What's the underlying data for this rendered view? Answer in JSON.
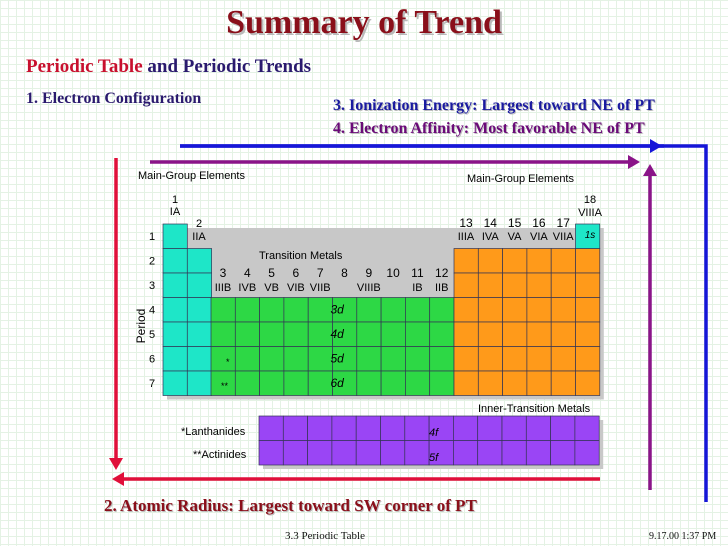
{
  "slide": {
    "title": "Summary of Trend",
    "subtitle_part1": "Periodic Table",
    "subtitle_part2": "and Periodic Trends",
    "item1": "1.  Electron Configuration",
    "item3": "3. Ionization Energy: Largest toward NE of PT",
    "item4": "4. Electron Affinity:   Most favorable NE of PT",
    "item2": "2.  Atomic Radius:  Largest toward SW corner of PT",
    "footer": "3.3  Periodic Table",
    "date": "9.17.00 1:37 PM"
  },
  "table": {
    "main_group_left": "Main-Group Elements",
    "main_group_right": "Main-Group Elements",
    "transition_metals": "Transition Metals",
    "inner_transition": "Inner-Transition Metals",
    "period_label": "Period",
    "lanthanides": "*Lanthanides",
    "actinides": "**Actinides",
    "star1": "*",
    "star2": "**",
    "group1_num": "1",
    "group1_roman": "IA",
    "group2_num": "2",
    "group2_roman": "IIA",
    "group18_num": "18",
    "group18_roman": "VIIIA",
    "d_groups": [
      "3",
      "4",
      "5",
      "6",
      "7",
      "8",
      "9",
      "10",
      "11",
      "12"
    ],
    "d_romans": [
      "IIIB",
      "IVB",
      "VB",
      "VIB",
      "VIIB",
      "VIIIB",
      "IB",
      "IIB"
    ],
    "p_groups": [
      "13",
      "14",
      "15",
      "16",
      "17"
    ],
    "p_romans": [
      "IIIA",
      "IVA",
      "VA",
      "VIA",
      "VIIA"
    ],
    "periods": [
      "1",
      "2",
      "3",
      "4",
      "5",
      "6",
      "7"
    ],
    "s1_label": "1s",
    "d_labels": [
      "3d",
      "4d",
      "5d",
      "6d"
    ],
    "f_labels": [
      "4f",
      "5f"
    ],
    "colors": {
      "s_block": "#1ee6c8",
      "d_block": "#2dd845",
      "p_block": "#ff9a1a",
      "f_block": "#9a45f5"
    }
  },
  "arrows": {
    "colors": {
      "ionization": "#1616d8",
      "affinity": "#8a1488",
      "radius": "#e0103a"
    }
  }
}
